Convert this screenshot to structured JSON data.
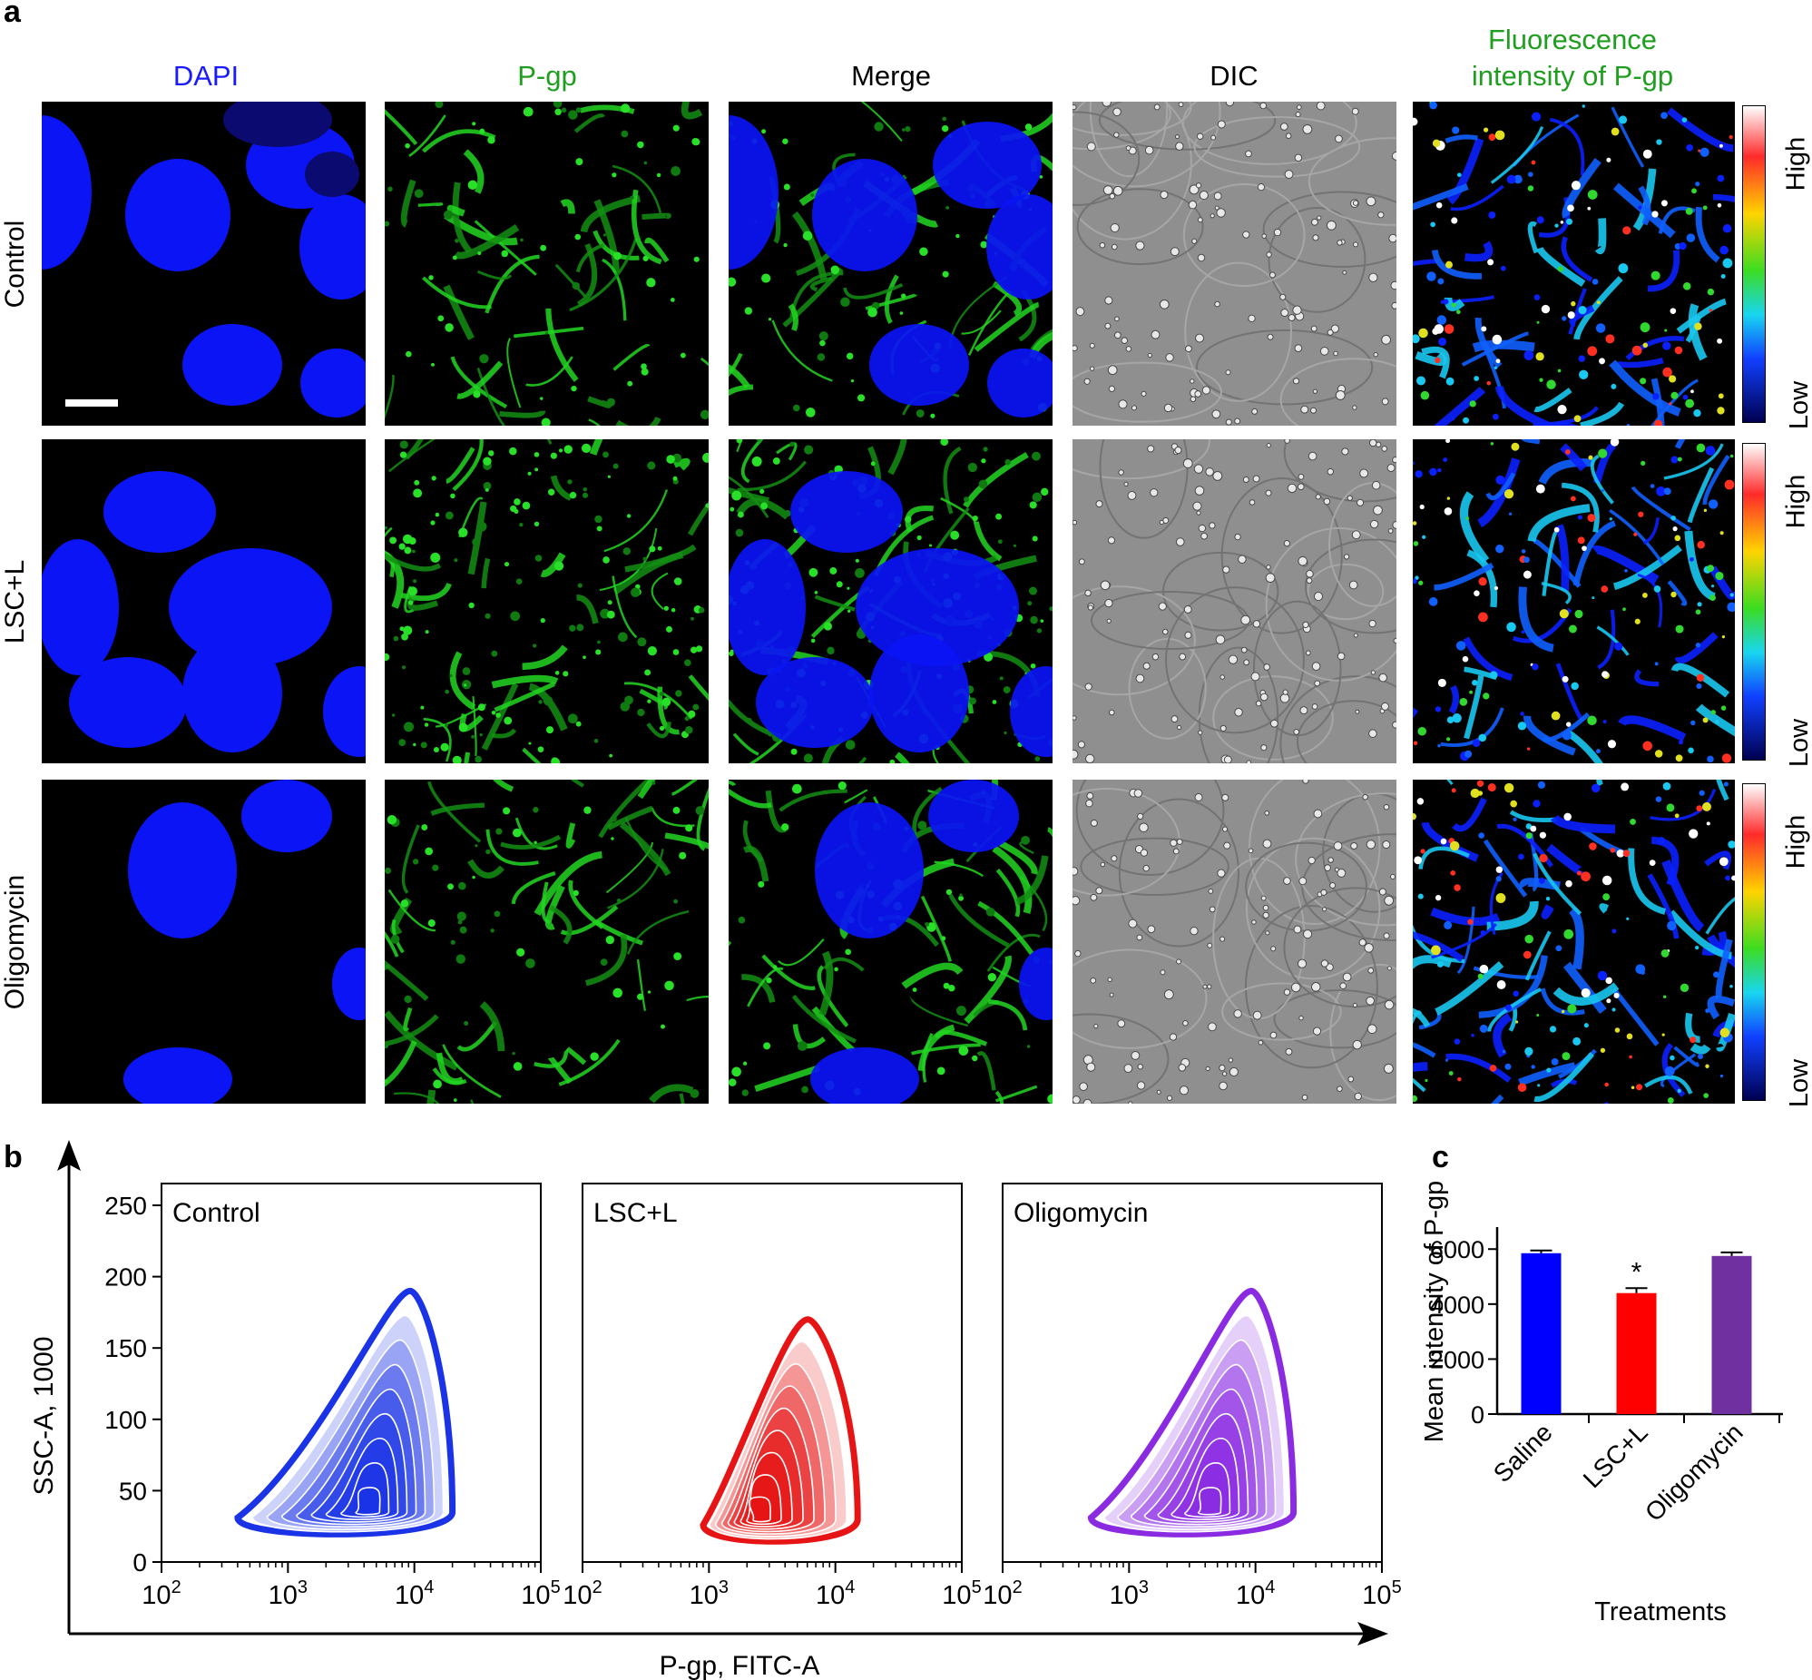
{
  "panel_a": {
    "letter": "a",
    "columns": [
      {
        "label": "DAPI",
        "color": "#1a1aff"
      },
      {
        "label": "P-gp",
        "color": "#1f9e1f"
      },
      {
        "label": "Merge",
        "color": "#000000"
      },
      {
        "label": "DIC",
        "color": "#000000"
      },
      {
        "label": "Fluorescence\nintensity of P-gp",
        "color": "#1f9e1f"
      }
    ],
    "rows": [
      "Control",
      "LSC+L",
      "Oligomycin"
    ],
    "colorbar": {
      "high": "High",
      "low": "Low"
    }
  },
  "panel_b": {
    "letter": "b",
    "xlabel": "P-gp, FITC-A",
    "ylabel": "SSC-A, 1000",
    "plots": [
      {
        "label": "Control",
        "color": "#1a33e6"
      },
      {
        "label": "LSC+L",
        "color": "#e61414"
      },
      {
        "label": "Oligomycin",
        "color": "#8a2be2"
      }
    ]
  },
  "panel_c": {
    "letter": "c"
  },
  "chart_data": [
    {
      "type": "scatter",
      "subtype": "contour",
      "title": "",
      "xlabel": "P-gp, FITC-A",
      "ylabel": "SSC-A, 1000",
      "xscale": "log",
      "xlim": [
        100,
        100000
      ],
      "ylim": [
        0,
        250
      ],
      "x_tick_labels": [
        "10^2",
        "10^3",
        "10^4",
        "10^5"
      ],
      "y_ticks": [
        0,
        50,
        100,
        150,
        200,
        250
      ],
      "panels": [
        {
          "label": "Control",
          "peak_x": 4500,
          "peak_y": 35,
          "x_range": [
            400,
            20000
          ],
          "y_range": [
            15,
            190
          ]
        },
        {
          "label": "LSC+L",
          "peak_x": 2500,
          "peak_y": 30,
          "x_range": [
            900,
            15000
          ],
          "y_range": [
            10,
            170
          ]
        },
        {
          "label": "Oligomycin",
          "peak_x": 4500,
          "peak_y": 35,
          "x_range": [
            500,
            20000
          ],
          "y_range": [
            15,
            190
          ]
        }
      ]
    },
    {
      "type": "bar",
      "title": "",
      "xlabel": "Treatments",
      "ylabel": "Mean intensity of P-gp",
      "categories": [
        "Saline",
        "LSC+L",
        "Oligomycin"
      ],
      "values": [
        5850,
        4400,
        5750
      ],
      "errors": [
        100,
        180,
        130
      ],
      "colors": [
        "#0000ff",
        "#ff0000",
        "#7030a0"
      ],
      "annotations": [
        "",
        "*",
        ""
      ],
      "ylim": [
        0,
        6800
      ],
      "y_ticks": [
        0,
        2000,
        4000,
        6000
      ]
    }
  ]
}
